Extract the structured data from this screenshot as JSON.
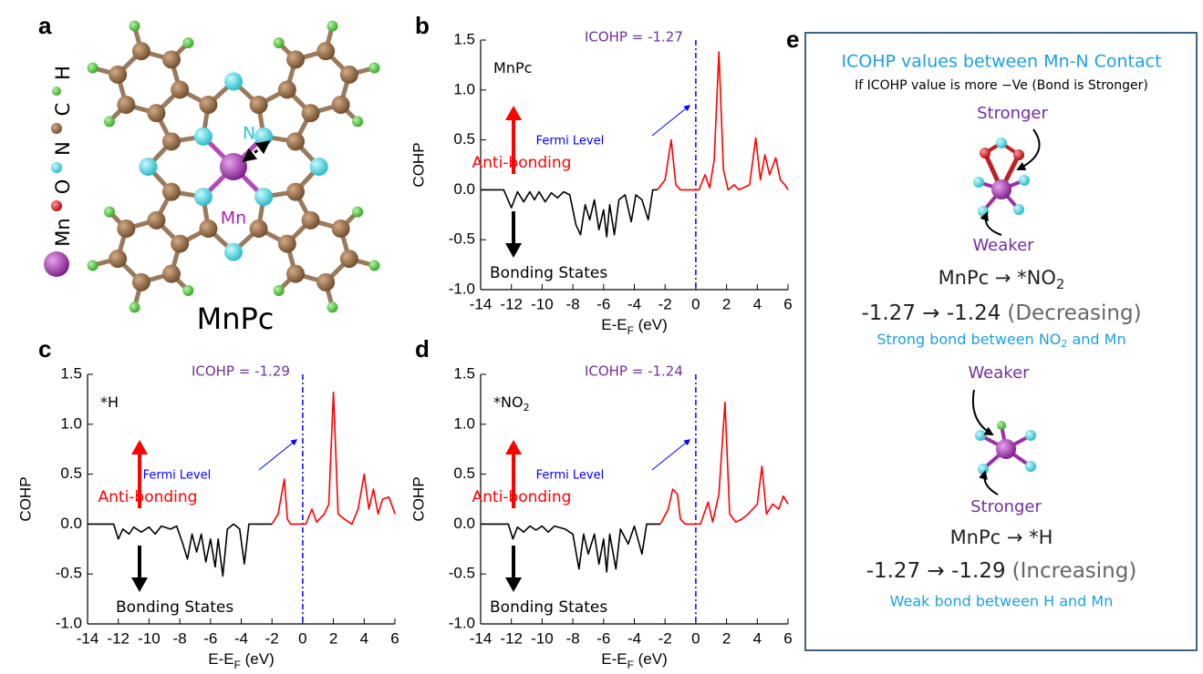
{
  "panel_a": {
    "letter": "a",
    "title": "MnPc",
    "legend": [
      "Mn",
      "O",
      "N",
      "C",
      "H"
    ],
    "atom_labels": [
      "N",
      "Mn"
    ]
  },
  "chart_data": [
    {
      "type": "line",
      "panel": "b",
      "system": [
        "MnPc"
      ],
      "xlabel": [
        "E-E",
        "F",
        " (eV)"
      ],
      "ylabel": "COHP",
      "annotations": {
        "icohp": "ICOHP = -1.27",
        "fermi": "Fermi Level",
        "antibonding": "Anti-bonding",
        "bonding": "Bonding States"
      },
      "xlim": [
        -14,
        6
      ],
      "xticks": [
        -14,
        -12,
        -10,
        -8,
        -6,
        -4,
        -2,
        0,
        2,
        4,
        6
      ],
      "ylim": [
        -1,
        1.5
      ],
      "yticks": [
        {
          "value": -1,
          "label": "-1.0"
        },
        -0.5,
        {
          "value": 0,
          "label": "0.0"
        },
        0.5,
        {
          "value": 1,
          "label": "1.0"
        },
        1.5
      ],
      "fermi_level": 0,
      "series": [
        {
          "color": "#000000",
          "x": [
            -14,
            -12.5,
            -12,
            -11.6,
            -11.2,
            -10.8,
            -10.5,
            -10.2,
            -9.8,
            -9.4,
            -9,
            -8.6,
            -8.2,
            -7.8,
            -7.5,
            -7.2,
            -6.9,
            -6.6,
            -6.3,
            -6,
            -5.8,
            -5.6,
            -5.3,
            -5,
            -4.6,
            -4.2,
            -3.9,
            -3.5,
            -3.1,
            -2.8,
            -2.5
          ],
          "values": [
            0,
            0,
            -0.18,
            -0.02,
            -0.12,
            -0.02,
            -0.1,
            -0.02,
            -0.12,
            -0.03,
            -0.08,
            -0.02,
            -0.05,
            -0.35,
            -0.45,
            -0.15,
            -0.3,
            -0.1,
            -0.4,
            -0.2,
            -0.47,
            -0.15,
            -0.45,
            -0.1,
            -0.05,
            -0.32,
            -0.05,
            -0.1,
            -0.3,
            0,
            0
          ]
        },
        {
          "color": "#ff0000",
          "x": [
            -2.5,
            -2,
            -1.6,
            -1.3,
            -1,
            0,
            0.2,
            0.6,
            0.9,
            1.2,
            1.5,
            1.8,
            2.1,
            2.5,
            2.8,
            3.5,
            3.9,
            4.2,
            4.5,
            4.8,
            5.2,
            5.5,
            5.8,
            6
          ],
          "values": [
            0,
            0.1,
            0.5,
            0.05,
            0,
            0,
            0,
            0.15,
            0.02,
            0.3,
            1.38,
            0.2,
            0,
            0.05,
            0,
            0.05,
            0.52,
            0.1,
            0.35,
            0.15,
            0.32,
            0.1,
            0.05,
            0
          ]
        }
      ]
    },
    {
      "type": "line",
      "panel": "c",
      "system": [
        "*H"
      ],
      "xlabel": [
        "E-E",
        "F",
        " (eV)"
      ],
      "ylabel": "COHP",
      "annotations": {
        "icohp": "ICOHP = -1.29",
        "fermi": "Fermi Level",
        "antibonding": "Anti-bonding",
        "bonding": "Bonding States"
      },
      "xlim": [
        -14,
        6
      ],
      "xticks": [
        -14,
        -12,
        -10,
        -8,
        -6,
        -4,
        -2,
        0,
        2,
        4,
        6
      ],
      "ylim": [
        -1,
        1.5
      ],
      "yticks": [
        {
          "value": -1,
          "label": "-1.0"
        },
        -0.5,
        {
          "value": 0,
          "label": "0.0"
        },
        0.5,
        {
          "value": 1,
          "label": "1.0"
        },
        1.5
      ],
      "fermi_level": 0,
      "series": [
        {
          "color": "#000000",
          "x": [
            -14,
            -12.3,
            -12,
            -11.7,
            -11.3,
            -11,
            -10.5,
            -10,
            -9.6,
            -9.2,
            -8.6,
            -8.2,
            -7.8,
            -7.5,
            -7.2,
            -6.9,
            -6.6,
            -6.3,
            -6,
            -5.7,
            -5.5,
            -5.2,
            -4.9,
            -4.5,
            -4.1,
            -3.8,
            -3.5,
            -2
          ],
          "values": [
            0,
            0,
            -0.15,
            -0.05,
            -0.1,
            -0.03,
            -0.08,
            -0.03,
            -0.1,
            -0.02,
            -0.05,
            -0.02,
            -0.2,
            -0.35,
            -0.1,
            -0.28,
            -0.1,
            -0.38,
            -0.15,
            -0.43,
            -0.15,
            -0.52,
            -0.05,
            0,
            -0.05,
            -0.4,
            0,
            0
          ]
        },
        {
          "color": "#ff0000",
          "x": [
            -2,
            -1.6,
            -1.2,
            -1,
            -0.8,
            0.2,
            0.6,
            0.9,
            1.4,
            1.7,
            2,
            2.3,
            2.7,
            3.2,
            3.6,
            4,
            4.3,
            4.6,
            4.9,
            5.2,
            5.6,
            5.9,
            6
          ],
          "values": [
            0,
            0.1,
            0.45,
            0.05,
            0,
            0,
            0.15,
            0.02,
            0.1,
            0.2,
            1.32,
            0.1,
            0.05,
            0,
            0.15,
            0.5,
            0.15,
            0.35,
            0.1,
            0.25,
            0.27,
            0.15,
            0.1
          ]
        }
      ]
    },
    {
      "type": "line",
      "panel": "d",
      "system": [
        "*NO",
        "2"
      ],
      "xlabel": [
        "E-E",
        "F",
        " (eV)"
      ],
      "ylabel": "COHP",
      "annotations": {
        "icohp": "ICOHP = -1.24",
        "fermi": "Fermi Level",
        "antibonding": "Anti-bonding",
        "bonding": "Bonding States"
      },
      "xlim": [
        -14,
        6
      ],
      "xticks": [
        -14,
        -12,
        -10,
        -8,
        -6,
        -4,
        -2,
        0,
        2,
        4,
        6
      ],
      "ylim": [
        -1,
        1.5
      ],
      "yticks": [
        {
          "value": -1,
          "label": "-1.0"
        },
        -0.5,
        {
          "value": 0,
          "label": "0.0"
        },
        0.5,
        {
          "value": 1,
          "label": "1.0"
        },
        1.5
      ],
      "fermi_level": 0,
      "series": [
        {
          "color": "#000000",
          "x": [
            -14,
            -12.2,
            -11.9,
            -11.6,
            -11.2,
            -10.8,
            -10.4,
            -10,
            -9.6,
            -9.2,
            -8.5,
            -8,
            -7.6,
            -7.3,
            -7,
            -6.6,
            -6.3,
            -6,
            -5.8,
            -5.6,
            -5.2,
            -4.9,
            -4.4,
            -4,
            -3.5,
            -3.2,
            -2.3
          ],
          "values": [
            0,
            0,
            -0.15,
            -0.03,
            -0.08,
            -0.02,
            -0.06,
            -0.02,
            -0.08,
            -0.02,
            -0.05,
            -0.1,
            -0.45,
            -0.1,
            -0.3,
            -0.1,
            -0.4,
            -0.15,
            -0.48,
            -0.1,
            -0.45,
            -0.05,
            -0.2,
            -0.02,
            -0.3,
            0,
            0
          ]
        },
        {
          "color": "#ff0000",
          "x": [
            -2.3,
            -1.8,
            -1.5,
            -1.2,
            -1,
            -0.7,
            0.3,
            0.8,
            1.1,
            1.5,
            1.9,
            2.2,
            2.6,
            3,
            3.4,
            4,
            4.3,
            4.6,
            5,
            5.4,
            5.7,
            6
          ],
          "values": [
            0,
            0.15,
            0.35,
            0.3,
            0.05,
            0,
            0,
            0.22,
            0.02,
            0.3,
            1.22,
            0.1,
            0.02,
            0.05,
            0.1,
            0.2,
            0.58,
            0.1,
            0.2,
            0.15,
            0.28,
            0.2
          ]
        }
      ]
    }
  ],
  "panel_e": {
    "letter": "e",
    "title": "ICOHP values between Mn-N Contact",
    "note": "If ICOHP value is more −Ve (Bond is Stronger)",
    "case_1": {
      "top": "Stronger",
      "bottom": "Weaker",
      "reaction": [
        "MnPc → *NO",
        "2"
      ],
      "change": [
        "-1.27 → -1.24",
        "(Decreasing)"
      ],
      "conclusion": [
        "Strong bond between NO",
        "2",
        " and Mn"
      ]
    },
    "case_2": {
      "top": "Weaker",
      "bottom": "Stronger",
      "reaction": "MnPc → *H",
      "change": [
        "-1.27 → -1.29",
        "(Increasing)"
      ],
      "conclusion": "Weak bond between H and Mn"
    }
  }
}
